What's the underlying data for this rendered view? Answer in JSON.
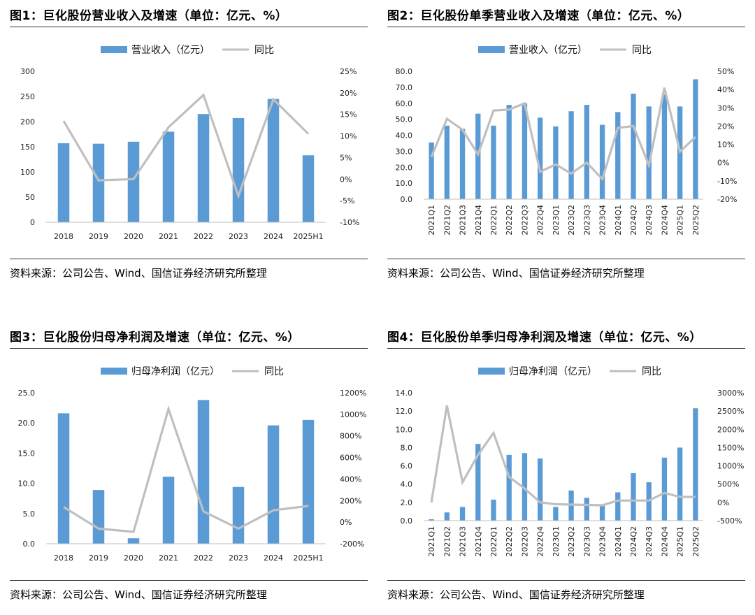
{
  "source_note": "资料来源：公司公告、Wind、国信证券经济研究所整理",
  "chart_data": [
    {
      "type": "bar",
      "title": "图1：巨化股份营业收入及增速（单位：亿元、%）",
      "categories": [
        "2018",
        "2019",
        "2020",
        "2021",
        "2022",
        "2023",
        "2024",
        "2025H1"
      ],
      "series": [
        {
          "name": "营业收入（亿元）",
          "type": "bar",
          "axis": "left",
          "color": "#5b9bd5",
          "values": [
            157,
            156,
            160,
            180,
            215,
            207,
            245,
            133
          ]
        },
        {
          "name": "同比",
          "type": "line",
          "axis": "right",
          "color": "#bfbfbf",
          "values": [
            13.5,
            -0.3,
            0,
            12,
            19.5,
            -3.9,
            18.5,
            10.5
          ]
        }
      ],
      "y_left": {
        "min": 0,
        "max": 300,
        "ticks": [
          "0",
          "50",
          "100",
          "150",
          "200",
          "250",
          "300"
        ]
      },
      "y_right": {
        "min": -10,
        "max": 25,
        "ticks": [
          "-10%",
          "-5%",
          "0%",
          "5%",
          "10%",
          "15%",
          "20%",
          "25%"
        ]
      },
      "legend": "top-center",
      "grid": false,
      "rotate_x": false
    },
    {
      "type": "bar",
      "title": "图2：巨化股份单季营业收入及增速（单位：亿元、%）",
      "categories": [
        "2021Q1",
        "2021Q2",
        "2021Q3",
        "2021Q4",
        "2022Q1",
        "2022Q2",
        "2022Q3",
        "2022Q4",
        "2023Q1",
        "2023Q2",
        "2023Q3",
        "2023Q4",
        "2024Q1",
        "2024Q2",
        "2024Q3",
        "2024Q4",
        "2025Q1",
        "2025Q2"
      ],
      "series": [
        {
          "name": "营业收入（亿元）",
          "type": "bar",
          "axis": "left",
          "color": "#5b9bd5",
          "values": [
            35.5,
            46,
            44,
            53.5,
            46,
            59,
            60,
            51,
            45.5,
            55,
            59,
            46.5,
            54.5,
            66,
            58,
            65.5,
            58,
            75
          ]
        },
        {
          "name": "同比",
          "type": "line",
          "axis": "right",
          "color": "#bfbfbf",
          "values": [
            3,
            24,
            18,
            4.5,
            28.5,
            29,
            32.5,
            -5,
            -1,
            -6,
            0,
            -9,
            19,
            20,
            -1.5,
            41,
            6,
            14
          ]
        }
      ],
      "y_left": {
        "min": 0,
        "max": 80,
        "ticks": [
          "0.0",
          "10.0",
          "20.0",
          "30.0",
          "40.0",
          "50.0",
          "60.0",
          "70.0",
          "80.0"
        ]
      },
      "y_right": {
        "min": -20,
        "max": 50,
        "ticks": [
          "-20%",
          "-10%",
          "0%",
          "10%",
          "20%",
          "30%",
          "40%",
          "50%"
        ]
      },
      "legend": "top-center",
      "grid": false,
      "rotate_x": true
    },
    {
      "type": "bar",
      "title": "图3：巨化股份归母净利润及增速（单位：亿元、%）",
      "categories": [
        "2018",
        "2019",
        "2020",
        "2021",
        "2022",
        "2023",
        "2024",
        "2025H1"
      ],
      "series": [
        {
          "name": "归母净利润（亿元）",
          "type": "bar",
          "axis": "left",
          "color": "#5b9bd5",
          "values": [
            21.6,
            8.9,
            0.9,
            11.1,
            23.8,
            9.4,
            19.6,
            20.5
          ]
        },
        {
          "name": "同比",
          "type": "line",
          "axis": "right",
          "color": "#bfbfbf",
          "values": [
            140,
            -60,
            -90,
            1050,
            100,
            -60,
            110,
            150
          ]
        }
      ],
      "y_left": {
        "min": 0,
        "max": 25,
        "ticks": [
          "0.0",
          "5.0",
          "10.0",
          "15.0",
          "20.0",
          "25.0"
        ]
      },
      "y_right": {
        "min": -200,
        "max": 1200,
        "ticks": [
          "-200%",
          "0%",
          "200%",
          "400%",
          "600%",
          "800%",
          "1000%",
          "1200%"
        ]
      },
      "legend": "top-center",
      "grid": false,
      "rotate_x": false
    },
    {
      "type": "bar",
      "title": "图4：巨化股份单季归母净利润及增速（单位：亿元、%）",
      "categories": [
        "2021Q1",
        "2021Q2",
        "2021Q3",
        "2021Q4",
        "2022Q1",
        "2022Q2",
        "2022Q3",
        "2022Q4",
        "2023Q1",
        "2023Q2",
        "2023Q3",
        "2023Q4",
        "2024Q1",
        "2024Q2",
        "2024Q3",
        "2024Q4",
        "2025Q1",
        "2025Q2"
      ],
      "series": [
        {
          "name": "归母净利润（亿元）",
          "type": "bar",
          "axis": "left",
          "color": "#5b9bd5",
          "values": [
            0.15,
            0.9,
            1.5,
            8.4,
            2.3,
            7.2,
            7.4,
            6.8,
            1.5,
            3.3,
            2.5,
            1.8,
            3.1,
            5.2,
            4.2,
            6.9,
            8.0,
            12.3
          ]
        },
        {
          "name": "同比",
          "type": "line",
          "axis": "right",
          "color": "#bfbfbf",
          "values": [
            0,
            2650,
            550,
            1300,
            1900,
            700,
            380,
            0,
            -50,
            -60,
            -70,
            -80,
            50,
            50,
            50,
            260,
            150,
            150
          ]
        }
      ],
      "y_left": {
        "min": 0,
        "max": 14,
        "ticks": [
          "0.0",
          "2.0",
          "4.0",
          "6.0",
          "8.0",
          "10.0",
          "12.0",
          "14.0"
        ]
      },
      "y_right": {
        "min": -500,
        "max": 3000,
        "ticks": [
          "-500%",
          "0%",
          "500%",
          "1000%",
          "1500%",
          "2000%",
          "2500%",
          "3000%"
        ]
      },
      "legend": "top-center",
      "grid": false,
      "rotate_x": true
    }
  ]
}
